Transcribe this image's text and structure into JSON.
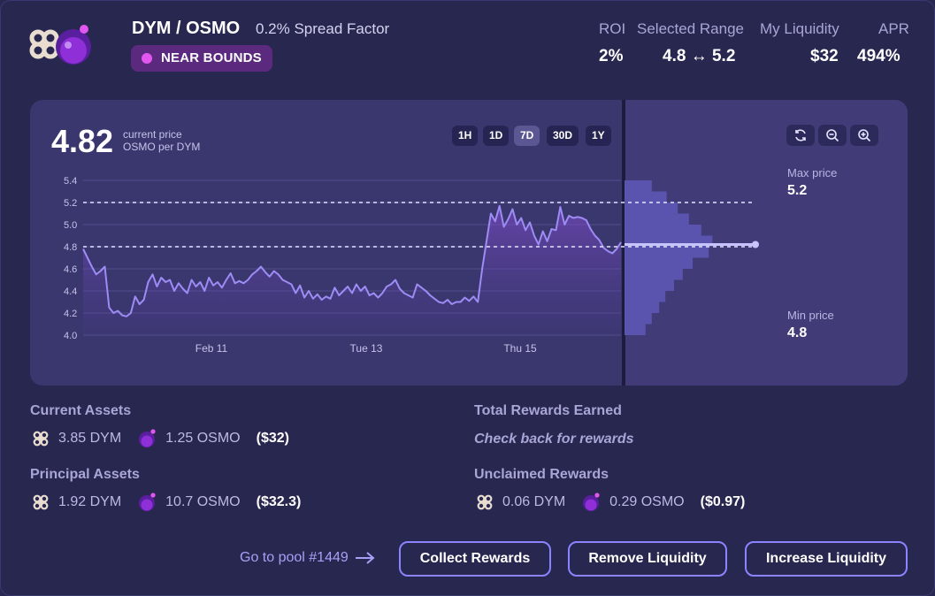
{
  "header": {
    "pair": "DYM / OSMO",
    "spread": "0.2% Spread Factor",
    "status_badge": "NEAR BOUNDS",
    "stats": [
      {
        "label": "ROI",
        "value": "2%"
      },
      {
        "label": "Selected Range",
        "value": "4.8 ↔ 5.2"
      },
      {
        "label": "My Liquidity",
        "value": "$32"
      },
      {
        "label": "APR",
        "value": "494%"
      }
    ]
  },
  "chart": {
    "current_price": "4.82",
    "current_price_label": "current price",
    "unit_label": "OSMO per DYM",
    "timeframes": [
      "1H",
      "1D",
      "7D",
      "30D",
      "1Y"
    ],
    "active_timeframe": "7D",
    "tools": [
      "refresh-icon",
      "zoom-out-icon",
      "zoom-in-icon"
    ],
    "max_price_label": "Max price",
    "max_price": "5.2",
    "min_price_label": "Min price",
    "min_price": "4.8"
  },
  "chart_data": {
    "type": "line",
    "y_ticks": [
      "5.4",
      "5.2",
      "5.0",
      "4.8",
      "4.6",
      "4.4",
      "4.2",
      "4.0"
    ],
    "x_ticks": [
      "Feb 11",
      "Tue 13",
      "Thu 15"
    ],
    "ylim": [
      4.0,
      5.4
    ],
    "range_lines": [
      5.2,
      4.8
    ],
    "series": [
      {
        "values": [
          4.78,
          4.7,
          4.62,
          4.55,
          4.58,
          4.62,
          4.25,
          4.2,
          4.22,
          4.18,
          4.17,
          4.2,
          4.35,
          4.28,
          4.32,
          4.48,
          4.55,
          4.44,
          4.52,
          4.48,
          4.5,
          4.4,
          4.47,
          4.42,
          4.38,
          4.5,
          4.44,
          4.48,
          4.4,
          4.52,
          4.45,
          4.48,
          4.43,
          4.5,
          4.56,
          4.47,
          4.49,
          4.47,
          4.5,
          4.55,
          4.58,
          4.62,
          4.57,
          4.53,
          4.58,
          4.55,
          4.5,
          4.48,
          4.46,
          4.38,
          4.45,
          4.34,
          4.4,
          4.33,
          4.37,
          4.32,
          4.35,
          4.33,
          4.43,
          4.36,
          4.4,
          4.44,
          4.38,
          4.46,
          4.4,
          4.44,
          4.36,
          4.38,
          4.34,
          4.38,
          4.44,
          4.46,
          4.5,
          4.42,
          4.38,
          4.36,
          4.34,
          4.46,
          4.43,
          4.4,
          4.36,
          4.33,
          4.3,
          4.29,
          4.32,
          4.28,
          4.3,
          4.3,
          4.34,
          4.31,
          4.35,
          4.3,
          4.6,
          4.85,
          5.1,
          5.03,
          5.17,
          4.98,
          5.05,
          5.14,
          5.0,
          5.06,
          4.95,
          5.02,
          4.9,
          4.82,
          4.94,
          4.85,
          4.96,
          4.95,
          5.16,
          5.0,
          5.08,
          5.06,
          5.07,
          5.06,
          5.04,
          4.96,
          4.9,
          4.86,
          4.79,
          4.76,
          4.74,
          4.78,
          4.84
        ]
      }
    ],
    "liquidity_histogram": [
      {
        "price": 5.35,
        "depth": 0.22
      },
      {
        "price": 5.25,
        "depth": 0.34
      },
      {
        "price": 5.15,
        "depth": 0.43
      },
      {
        "price": 5.05,
        "depth": 0.52
      },
      {
        "price": 4.95,
        "depth": 0.62
      },
      {
        "price": 4.85,
        "depth": 0.71
      },
      {
        "price": 4.75,
        "depth": 0.68
      },
      {
        "price": 4.65,
        "depth": 0.55
      },
      {
        "price": 4.55,
        "depth": 0.47
      },
      {
        "price": 4.45,
        "depth": 0.4
      },
      {
        "price": 4.35,
        "depth": 0.33
      },
      {
        "price": 4.25,
        "depth": 0.28
      },
      {
        "price": 4.15,
        "depth": 0.22
      },
      {
        "price": 4.05,
        "depth": 0.17
      }
    ]
  },
  "assets": {
    "current_title": "Current Assets",
    "current": {
      "dym": "3.85 DYM",
      "osmo": "1.25 OSMO",
      "usd": "($32)"
    },
    "principal_title": "Principal Assets",
    "principal": {
      "dym": "1.92 DYM",
      "osmo": "10.7 OSMO",
      "usd": "($32.3)"
    },
    "total_rewards_title": "Total Rewards Earned",
    "total_rewards_note": "Check back for rewards",
    "unclaimed_title": "Unclaimed Rewards",
    "unclaimed": {
      "dym": "0.06 DYM",
      "osmo": "0.29 OSMO",
      "usd": "($0.97)"
    }
  },
  "footer": {
    "pool_link": "Go to pool #1449",
    "collect": "Collect Rewards",
    "remove": "Remove Liquidity",
    "increase": "Increase Liquidity"
  },
  "colors": {
    "background": "#282750",
    "panel": "#3a366e",
    "line": "#9d8cf5",
    "badge": "#5b2a7e",
    "badge_dot": "#e357f1",
    "button_border": "#8b83ff"
  }
}
